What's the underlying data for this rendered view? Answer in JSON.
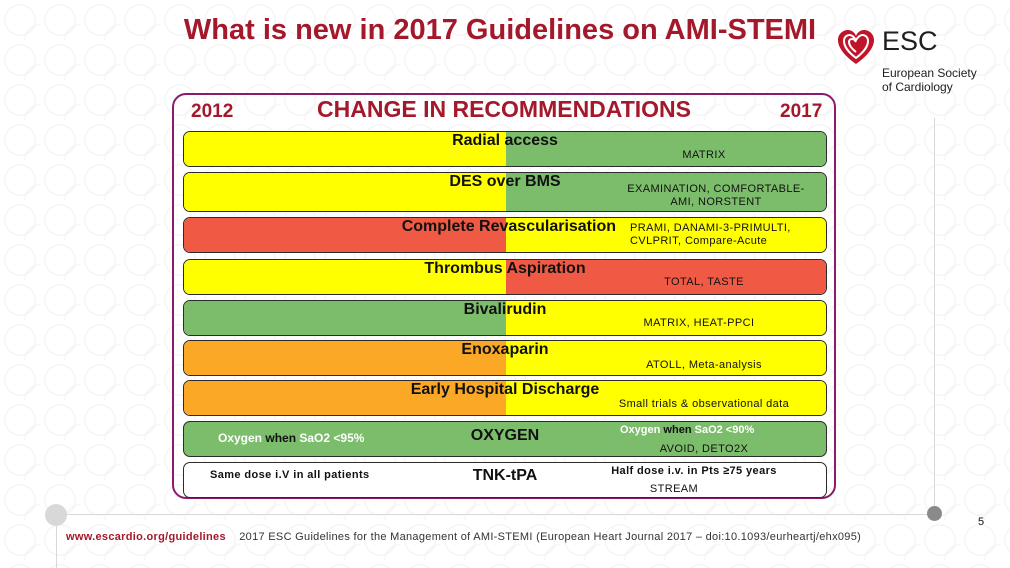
{
  "slide": {
    "title": "What is new in 2017 Guidelines on AMI-STEMI",
    "heading": "CHANGE IN RECOMMENDATIONS",
    "year_left": "2012",
    "year_right": "2017",
    "page_number": "5"
  },
  "logo": {
    "brand": "ESC",
    "line1": "European Society",
    "line2": "of Cardiology",
    "icon": "heart-logo-icon"
  },
  "colors": {
    "yellow": "#ffff00",
    "green": "#7cbd6b",
    "red": "#f05a44",
    "orange": "#fba826",
    "white": "#ffffff",
    "title": "#a3182a"
  },
  "rows": [
    {
      "label": "Radial access",
      "left": "yellow",
      "right": "green",
      "note": "MATRIX"
    },
    {
      "label": "DES over BMS",
      "left": "yellow",
      "right": "green",
      "note": "EXAMINATION, COMFORTABLE-AMI, NORSTENT"
    },
    {
      "label": "Complete Revascularisation",
      "left": "red",
      "right": "yellow",
      "note": "PRAMI, DANAMI-3-PRIMULTI, CVLPRIT, Compare-Acute"
    },
    {
      "label": "Thrombus Aspiration",
      "left": "yellow",
      "right": "red",
      "note": "TOTAL, TASTE"
    },
    {
      "label": "Bivalirudin",
      "left": "green",
      "right": "yellow",
      "note": "MATRIX, HEAT-PPCI"
    },
    {
      "label": "Enoxaparin",
      "left": "orange",
      "right": "yellow",
      "note": "ATOLL, Meta-analysis"
    },
    {
      "label": "Early Hospital Discharge",
      "left": "orange",
      "right": "yellow",
      "note": "Small trials & observational data"
    }
  ],
  "oxygen": {
    "label": "OXYGEN",
    "left_a": "Oxygen",
    "left_b": "when",
    "left_c": "SaO2 <95%",
    "right_a": "Oxygen",
    "right_b": "when",
    "right_c": "SaO2 <90%",
    "note": "AVOID, DETO2X"
  },
  "tnk": {
    "label": "TNK-tPA",
    "left": "Same dose i.V in all patients",
    "right": "Half dose i.v. in Pts ≥75 years",
    "note": "STREAM"
  },
  "footer": {
    "url": "www.escardio.org/guidelines",
    "citation": "2017 ESC Guidelines for the Management of AMI-STEMI (European Heart Journal 2017 – doi:10.1093/eurheartj/ehx095)"
  }
}
